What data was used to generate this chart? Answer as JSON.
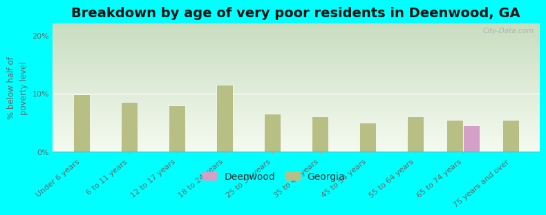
{
  "title": "Breakdown by age of very poor residents in Deenwood, GA",
  "ylabel": "% below half of\npoverty level",
  "categories": [
    "Under 6 years",
    "6 to 11 years",
    "12 to 17 years",
    "18 to 24 years",
    "25 to 34 years",
    "35 to 44 years",
    "45 to 54 years",
    "55 to 64 years",
    "65 to 74 years",
    "75 years and over"
  ],
  "georgia_values": [
    9.8,
    8.5,
    8.0,
    11.5,
    6.5,
    6.0,
    5.0,
    6.0,
    5.5,
    5.5
  ],
  "deenwood_values": [
    null,
    null,
    null,
    null,
    null,
    null,
    null,
    null,
    4.5,
    null
  ],
  "georgia_color": "#b8bf85",
  "deenwood_color": "#d4a0c8",
  "bg_top_color": "#c8ddc0",
  "bg_bottom_color": "#f5faf0",
  "outer_bg": "#00ffff",
  "ylim": [
    0,
    22
  ],
  "yticks": [
    0,
    10,
    20
  ],
  "ytick_labels": [
    "0%",
    "10%",
    "20%"
  ],
  "bar_width": 0.35,
  "title_fontsize": 14,
  "axis_label_fontsize": 8.5,
  "tick_fontsize": 8,
  "legend_fontsize": 10,
  "watermark": "City-Data.com"
}
